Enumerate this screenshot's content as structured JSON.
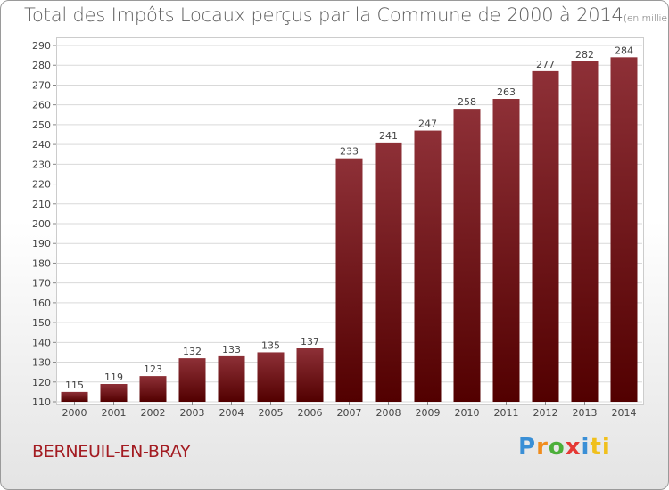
{
  "header": {
    "title": "Total des Impôts Locaux perçus par la Commune de 2000 à 2014",
    "unit": "(en milliers d'€)"
  },
  "footer": {
    "commune": "BERNEUIL-EN-BRAY",
    "logo_letters": [
      "P",
      "r",
      "o",
      "x",
      "i",
      "ti"
    ]
  },
  "colors": {
    "bar_top": "#8e3037",
    "bar_bottom": "#520000",
    "grid": "#d9d9d9",
    "axis_text": "#444444",
    "commune_text": "#a31c22"
  },
  "chart_data": {
    "type": "bar",
    "title": "Total des Impôts Locaux perçus par la Commune de 2000 à 2014",
    "xlabel": "",
    "ylabel": "",
    "categories": [
      "2000",
      "2001",
      "2002",
      "2003",
      "2004",
      "2005",
      "2006",
      "2007",
      "2008",
      "2009",
      "2010",
      "2011",
      "2012",
      "2013",
      "2014"
    ],
    "values": [
      115,
      119,
      123,
      132,
      133,
      135,
      137,
      233,
      241,
      247,
      258,
      263,
      277,
      282,
      284
    ],
    "ylim": [
      110,
      290
    ],
    "yticks": [
      110,
      120,
      130,
      140,
      150,
      160,
      170,
      180,
      190,
      200,
      210,
      220,
      230,
      240,
      250,
      260,
      270,
      280,
      290
    ],
    "grid": true,
    "legend": "none"
  }
}
